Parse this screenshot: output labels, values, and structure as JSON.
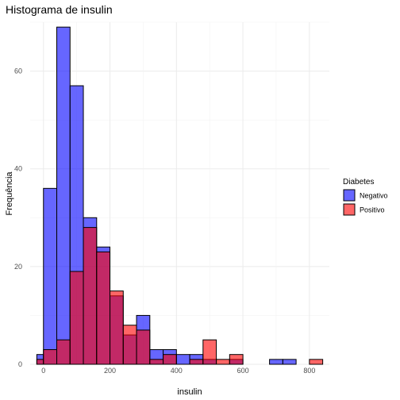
{
  "chart_data": {
    "type": "bar",
    "title": "Histograma de insulin",
    "xlabel": "insulin",
    "ylabel": "Frequência",
    "xlim": [
      -40,
      860
    ],
    "ylim": [
      0,
      70
    ],
    "xticks": [
      0,
      200,
      400,
      600,
      800
    ],
    "yticks": [
      0,
      20,
      40,
      60
    ],
    "grid": true,
    "bin_width": 40,
    "legend": {
      "title": "Diabetes",
      "placement": "right",
      "entries": [
        "Negativo",
        "Positivo"
      ]
    },
    "series": [
      {
        "name": "Negativo",
        "color": "#0000ff",
        "bins": [
          {
            "x0": -20,
            "x1": 0,
            "count": 2
          },
          {
            "x0": 0,
            "x1": 40,
            "count": 36
          },
          {
            "x0": 40,
            "x1": 80,
            "count": 69
          },
          {
            "x0": 80,
            "x1": 120,
            "count": 57
          },
          {
            "x0": 120,
            "x1": 160,
            "count": 30
          },
          {
            "x0": 160,
            "x1": 200,
            "count": 24
          },
          {
            "x0": 200,
            "x1": 240,
            "count": 14
          },
          {
            "x0": 240,
            "x1": 280,
            "count": 6
          },
          {
            "x0": 280,
            "x1": 320,
            "count": 10
          },
          {
            "x0": 320,
            "x1": 360,
            "count": 3
          },
          {
            "x0": 360,
            "x1": 400,
            "count": 3
          },
          {
            "x0": 400,
            "x1": 440,
            "count": 2
          },
          {
            "x0": 440,
            "x1": 480,
            "count": 2
          },
          {
            "x0": 480,
            "x1": 520,
            "count": 1
          },
          {
            "x0": 520,
            "x1": 560,
            "count": 0
          },
          {
            "x0": 560,
            "x1": 600,
            "count": 1
          },
          {
            "x0": 600,
            "x1": 640,
            "count": 0
          },
          {
            "x0": 640,
            "x1": 680,
            "count": 0
          },
          {
            "x0": 680,
            "x1": 720,
            "count": 1
          },
          {
            "x0": 720,
            "x1": 760,
            "count": 1
          },
          {
            "x0": 760,
            "x1": 800,
            "count": 0
          },
          {
            "x0": 800,
            "x1": 840,
            "count": 0
          }
        ]
      },
      {
        "name": "Positivo",
        "color": "#ff0000",
        "bins": [
          {
            "x0": -20,
            "x1": 0,
            "count": 1
          },
          {
            "x0": 0,
            "x1": 40,
            "count": 3
          },
          {
            "x0": 40,
            "x1": 80,
            "count": 5
          },
          {
            "x0": 80,
            "x1": 120,
            "count": 19
          },
          {
            "x0": 120,
            "x1": 160,
            "count": 28
          },
          {
            "x0": 160,
            "x1": 200,
            "count": 23
          },
          {
            "x0": 200,
            "x1": 240,
            "count": 15
          },
          {
            "x0": 240,
            "x1": 280,
            "count": 8
          },
          {
            "x0": 280,
            "x1": 320,
            "count": 7
          },
          {
            "x0": 320,
            "x1": 360,
            "count": 1
          },
          {
            "x0": 360,
            "x1": 400,
            "count": 2
          },
          {
            "x0": 400,
            "x1": 440,
            "count": 0
          },
          {
            "x0": 440,
            "x1": 480,
            "count": 1
          },
          {
            "x0": 480,
            "x1": 520,
            "count": 5
          },
          {
            "x0": 520,
            "x1": 560,
            "count": 1
          },
          {
            "x0": 560,
            "x1": 600,
            "count": 2
          },
          {
            "x0": 600,
            "x1": 640,
            "count": 0
          },
          {
            "x0": 640,
            "x1": 680,
            "count": 0
          },
          {
            "x0": 680,
            "x1": 720,
            "count": 0
          },
          {
            "x0": 720,
            "x1": 760,
            "count": 0
          },
          {
            "x0": 760,
            "x1": 800,
            "count": 0
          },
          {
            "x0": 800,
            "x1": 840,
            "count": 1
          }
        ]
      }
    ]
  }
}
